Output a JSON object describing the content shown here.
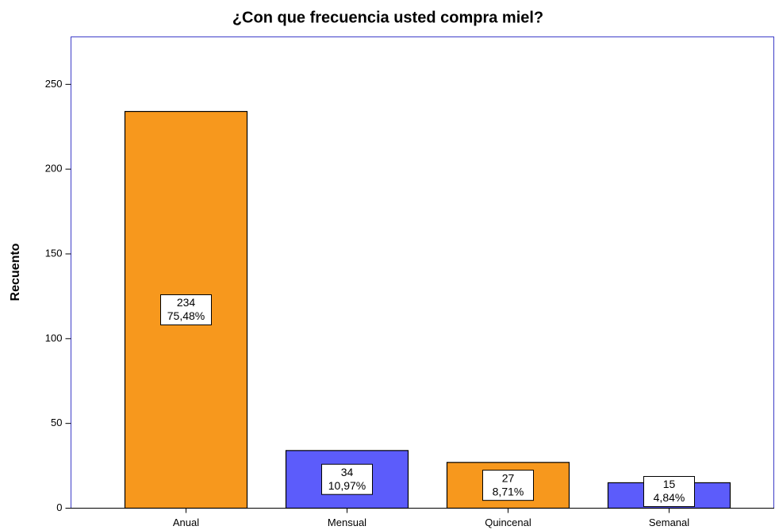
{
  "chart_data": {
    "type": "bar",
    "title": "¿Con que frecuencia usted compra miel?",
    "y_label": "Recuento",
    "categories": [
      "Anual",
      "Mensual",
      "Quincenal",
      "Semanal"
    ],
    "values": [
      234,
      34,
      27,
      15
    ],
    "percent_labels": [
      "75,48%",
      "10,97%",
      "8,71%",
      "4,84%"
    ],
    "colors": [
      "#f7981d",
      "#5c5cfb",
      "#f7981d",
      "#5c5cfb"
    ],
    "ylim": [
      0,
      278
    ],
    "yticks": [
      0,
      50,
      100,
      150,
      200,
      250
    ],
    "grid": false
  }
}
